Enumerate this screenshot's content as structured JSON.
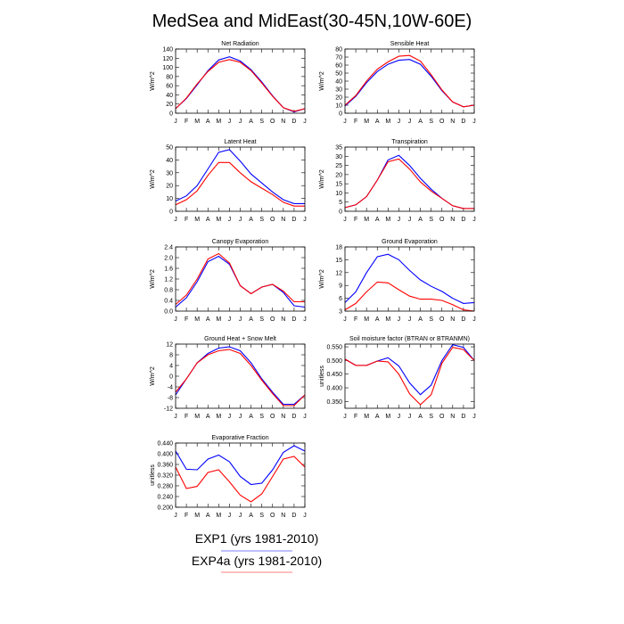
{
  "title": "MedSea and MidEast(30-45N,10W-60E)",
  "months": [
    "J",
    "F",
    "M",
    "A",
    "M",
    "J",
    "J",
    "A",
    "S",
    "O",
    "N",
    "D",
    "J"
  ],
  "colors": {
    "exp1": "#0000ff",
    "exp4a": "#ff0000",
    "axis": "#000000"
  },
  "legend": {
    "items": [
      {
        "label": "EXP1 (yrs 1981-2010)",
        "color": "#0000ff"
      },
      {
        "label": "EXP4a (yrs 1981-2010)",
        "color": "#ff0000"
      }
    ]
  },
  "chart_data": [
    {
      "type": "line",
      "title": "Net Radiation",
      "ylabel": "W/m^2",
      "ylim": [
        0,
        140
      ],
      "yticks": [
        "0",
        "20",
        "40",
        "60",
        "80",
        "100",
        "120",
        "140"
      ],
      "series": [
        {
          "name": "EXP1 (yrs 1981-2010)",
          "values": [
            10,
            32,
            62,
            93,
            116,
            123,
            114,
            95,
            68,
            38,
            12,
            3,
            10
          ]
        },
        {
          "name": "EXP4a (yrs 1981-2010)",
          "values": [
            10,
            33,
            64,
            91,
            111,
            117,
            111,
            93,
            66,
            37,
            12,
            4,
            10
          ]
        }
      ]
    },
    {
      "type": "line",
      "title": "Sensible Heat",
      "ylabel": "W/m^2",
      "ylim": [
        0,
        80
      ],
      "yticks": [
        "0",
        "10",
        "20",
        "30",
        "40",
        "50",
        "60",
        "70",
        "80"
      ],
      "series": [
        {
          "name": "EXP1 (yrs 1981-2010)",
          "values": [
            9,
            21,
            38,
            52,
            61,
            66,
            67,
            61,
            46,
            28,
            14,
            8,
            10
          ]
        },
        {
          "name": "EXP4a (yrs 1981-2010)",
          "values": [
            10,
            22,
            40,
            55,
            64,
            71,
            72,
            65,
            48,
            29,
            14,
            8,
            10
          ]
        }
      ]
    },
    {
      "type": "line",
      "title": "Latent Heat",
      "ylabel": "W/m^2",
      "ylim": [
        0,
        50
      ],
      "yticks": [
        "0",
        "10",
        "20",
        "30",
        "40",
        "50"
      ],
      "series": [
        {
          "name": "EXP1 (yrs 1981-2010)",
          "values": [
            8,
            12,
            20,
            33,
            46,
            48,
            39,
            29,
            22,
            15,
            9,
            6,
            6
          ]
        },
        {
          "name": "EXP4a (yrs 1981-2010)",
          "values": [
            5,
            9,
            16,
            28,
            38,
            38,
            30,
            23,
            18,
            13,
            7,
            4,
            4
          ]
        }
      ]
    },
    {
      "type": "line",
      "title": "Transpiration",
      "ylabel": "W/m^2",
      "ylim": [
        0,
        35
      ],
      "yticks": [
        "0",
        "5",
        "10",
        "15",
        "20",
        "25",
        "30",
        "35"
      ],
      "series": [
        {
          "name": "EXP1 (yrs 1981-2010)",
          "values": [
            2,
            3.5,
            8,
            17,
            28,
            30.5,
            25,
            18,
            12,
            7,
            3,
            1.5,
            1.5
          ]
        },
        {
          "name": "EXP4a (yrs 1981-2010)",
          "values": [
            2,
            3.5,
            8,
            17,
            27,
            28.5,
            23,
            16,
            11,
            7,
            3,
            1.5,
            1.5
          ]
        }
      ]
    },
    {
      "type": "line",
      "title": "Canopy Evaporation",
      "ylabel": "W/m^2",
      "ylim": [
        0,
        2.4
      ],
      "yticks": [
        "0.0",
        "0.4",
        "0.8",
        "1.2",
        "1.6",
        "2.0",
        "2.4"
      ],
      "series": [
        {
          "name": "EXP1 (yrs 1981-2010)",
          "values": [
            0.15,
            0.5,
            1.1,
            1.85,
            2.05,
            1.75,
            0.95,
            0.65,
            0.9,
            1.0,
            0.7,
            0.2,
            0.15
          ]
        },
        {
          "name": "EXP4a (yrs 1981-2010)",
          "values": [
            0.25,
            0.6,
            1.2,
            1.95,
            2.15,
            1.8,
            0.95,
            0.65,
            0.9,
            1.0,
            0.75,
            0.35,
            0.35
          ]
        }
      ]
    },
    {
      "type": "line",
      "title": "Ground Evaporation",
      "ylabel": "W/m^2",
      "ylim": [
        3,
        18
      ],
      "yticks": [
        "3",
        "6",
        "9",
        "12",
        "15",
        "18"
      ],
      "series": [
        {
          "name": "EXP1 (yrs 1981-2010)",
          "values": [
            5,
            7.5,
            12,
            15.7,
            16.3,
            15,
            12.5,
            10.3,
            8.8,
            7.6,
            6,
            4.8,
            5
          ]
        },
        {
          "name": "EXP4a (yrs 1981-2010)",
          "values": [
            3.3,
            4.8,
            7.5,
            9.8,
            9.6,
            8,
            6.5,
            5.8,
            5.8,
            5.5,
            4.5,
            3.3,
            3
          ]
        }
      ]
    },
    {
      "type": "line",
      "title": "Ground Heat + Snow Melt",
      "ylabel": "W/m^2",
      "ylim": [
        -12,
        12
      ],
      "yticks": [
        "-12",
        "-8",
        "-4",
        "0",
        "4",
        "8",
        "12"
      ],
      "series": [
        {
          "name": "EXP1 (yrs 1981-2010)",
          "values": [
            -7,
            -1,
            5,
            8.5,
            10.5,
            11,
            9.5,
            5,
            -1,
            -6,
            -10.5,
            -10.5,
            -7
          ]
        },
        {
          "name": "EXP4a (yrs 1981-2010)",
          "values": [
            -6,
            -1,
            5,
            8,
            9.5,
            10,
            8.5,
            4,
            -1.5,
            -6.5,
            -11,
            -11,
            -7
          ]
        }
      ]
    },
    {
      "type": "line",
      "title": "Soil moisture factor (BTRAN or BTRANMN)",
      "ylabel": "unitless",
      "ylim": [
        0.325,
        0.56
      ],
      "yticks": [
        "0.350",
        "0.400",
        "0.450",
        "0.500",
        "0.550"
      ],
      "series": [
        {
          "name": "EXP1 (yrs 1981-2010)",
          "values": [
            0.505,
            0.482,
            0.482,
            0.498,
            0.51,
            0.48,
            0.418,
            0.375,
            0.41,
            0.5,
            0.558,
            0.548,
            0.5
          ]
        },
        {
          "name": "EXP4a (yrs 1981-2010)",
          "values": [
            0.505,
            0.482,
            0.482,
            0.498,
            0.495,
            0.45,
            0.378,
            0.338,
            0.375,
            0.49,
            0.548,
            0.54,
            0.5
          ]
        }
      ]
    },
    {
      "type": "line",
      "title": "Evaporative Fraction",
      "ylabel": "unitless",
      "ylim": [
        0.2,
        0.44
      ],
      "yticks": [
        "0.200",
        "0.240",
        "0.280",
        "0.320",
        "0.360",
        "0.400",
        "0.440"
      ],
      "series": [
        {
          "name": "EXP1 (yrs 1981-2010)",
          "values": [
            0.41,
            0.342,
            0.34,
            0.38,
            0.395,
            0.37,
            0.315,
            0.285,
            0.29,
            0.34,
            0.405,
            0.43,
            0.41
          ]
        },
        {
          "name": "EXP4a (yrs 1981-2010)",
          "values": [
            0.35,
            0.27,
            0.278,
            0.33,
            0.34,
            0.295,
            0.245,
            0.22,
            0.25,
            0.315,
            0.38,
            0.39,
            0.35
          ]
        }
      ]
    }
  ]
}
